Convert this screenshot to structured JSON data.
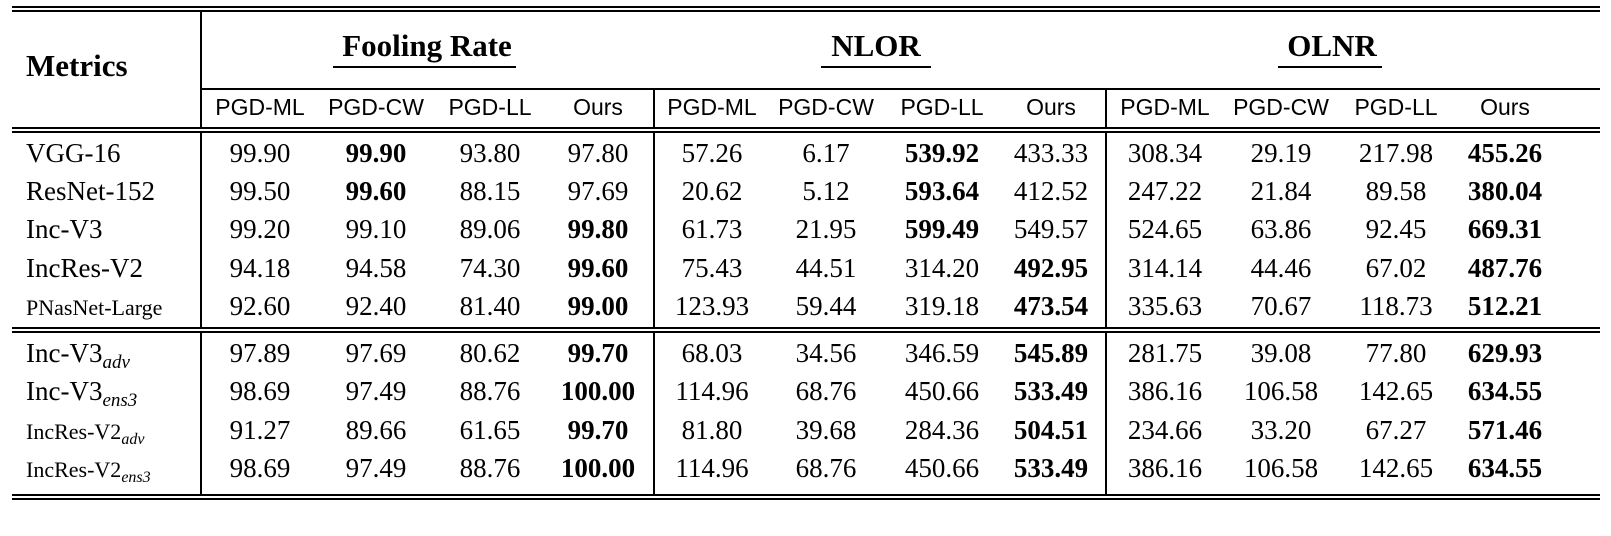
{
  "table": {
    "metrics_header": "Metrics",
    "groups": [
      "Fooling Rate",
      "NLOR",
      "OLNR"
    ],
    "subheaders": [
      "PGD-ML",
      "PGD-CW",
      "PGD-LL",
      "Ours"
    ],
    "rows": [
      {
        "model": "VGG-16",
        "sub": "",
        "small": false,
        "values": [
          "99.90",
          "99.90",
          "93.80",
          "97.80",
          "57.26",
          "6.17",
          "539.92",
          "433.33",
          "308.34",
          "29.19",
          "217.98",
          "455.26"
        ],
        "bold": [
          1,
          6,
          11
        ]
      },
      {
        "model": "ResNet-152",
        "sub": "",
        "small": false,
        "values": [
          "99.50",
          "99.60",
          "88.15",
          "97.69",
          "20.62",
          "5.12",
          "593.64",
          "412.52",
          "247.22",
          "21.84",
          "89.58",
          "380.04"
        ],
        "bold": [
          1,
          6,
          11
        ]
      },
      {
        "model": "Inc-V3",
        "sub": "",
        "small": false,
        "values": [
          "99.20",
          "99.10",
          "89.06",
          "99.80",
          "61.73",
          "21.95",
          "599.49",
          "549.57",
          "524.65",
          "63.86",
          "92.45",
          "669.31"
        ],
        "bold": [
          3,
          6,
          11
        ]
      },
      {
        "model": "IncRes-V2",
        "sub": "",
        "small": false,
        "values": [
          "94.18",
          "94.58",
          "74.30",
          "99.60",
          "75.43",
          "44.51",
          "314.20",
          "492.95",
          "314.14",
          "44.46",
          "67.02",
          "487.76"
        ],
        "bold": [
          3,
          7,
          11
        ]
      },
      {
        "model": "PNasNet-Large",
        "sub": "",
        "small": true,
        "values": [
          "92.60",
          "92.40",
          "81.40",
          "99.00",
          "123.93",
          "59.44",
          "319.18",
          "473.54",
          "335.63",
          "70.67",
          "118.73",
          "512.21"
        ],
        "bold": [
          3,
          7,
          11
        ]
      },
      {
        "model": "Inc-V3",
        "sub": "adv",
        "small": false,
        "values": [
          "97.89",
          "97.69",
          "80.62",
          "99.70",
          "68.03",
          "34.56",
          "346.59",
          "545.89",
          "281.75",
          "39.08",
          "77.80",
          "629.93"
        ],
        "bold": [
          3,
          7,
          11
        ]
      },
      {
        "model": "Inc-V3",
        "sub": "ens3",
        "small": false,
        "values": [
          "98.69",
          "97.49",
          "88.76",
          "100.00",
          "114.96",
          "68.76",
          "450.66",
          "533.49",
          "386.16",
          "106.58",
          "142.65",
          "634.55"
        ],
        "bold": [
          3,
          7,
          11
        ]
      },
      {
        "model": "IncRes-V2",
        "sub": "adv",
        "small": true,
        "values": [
          "91.27",
          "89.66",
          "61.65",
          "99.70",
          "81.80",
          "39.68",
          "284.36",
          "504.51",
          "234.66",
          "33.20",
          "67.27",
          "571.46"
        ],
        "bold": [
          3,
          7,
          11
        ]
      },
      {
        "model": "IncRes-V2",
        "sub": "ens3",
        "small": true,
        "values": [
          "98.69",
          "97.49",
          "88.76",
          "100.00",
          "114.96",
          "68.76",
          "450.66",
          "533.49",
          "386.16",
          "106.58",
          "142.65",
          "634.55"
        ],
        "bold": [
          3,
          7,
          11
        ]
      }
    ]
  }
}
